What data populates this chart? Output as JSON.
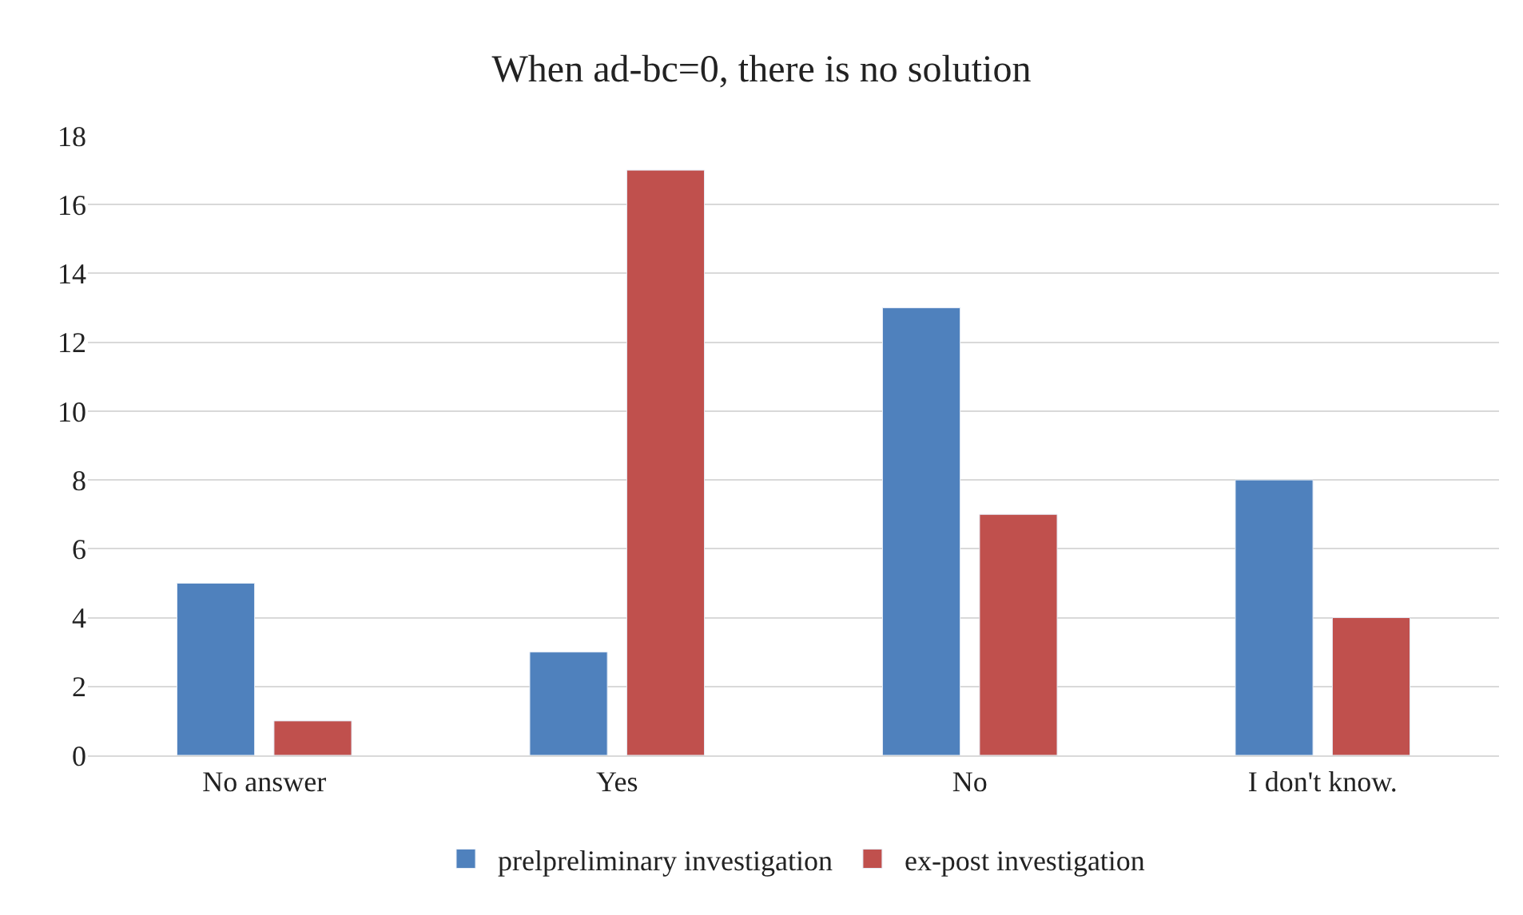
{
  "chart_data": {
    "type": "bar",
    "title": "When ad-bc=0, there is no solution",
    "categories": [
      "No answer",
      "Yes",
      "No",
      "I don't know."
    ],
    "series": [
      {
        "name": "prelpreliminary investigation",
        "color": "#4f81bd",
        "values": [
          5,
          3,
          13,
          8
        ]
      },
      {
        "name": "ex-post investigation",
        "color": "#c0504d",
        "values": [
          1,
          17,
          7,
          4
        ]
      }
    ],
    "ylim": [
      0,
      18
    ],
    "yticks": [
      0,
      2,
      4,
      6,
      8,
      10,
      12,
      14,
      16,
      18
    ],
    "grid": "y",
    "legend": "bottom"
  }
}
